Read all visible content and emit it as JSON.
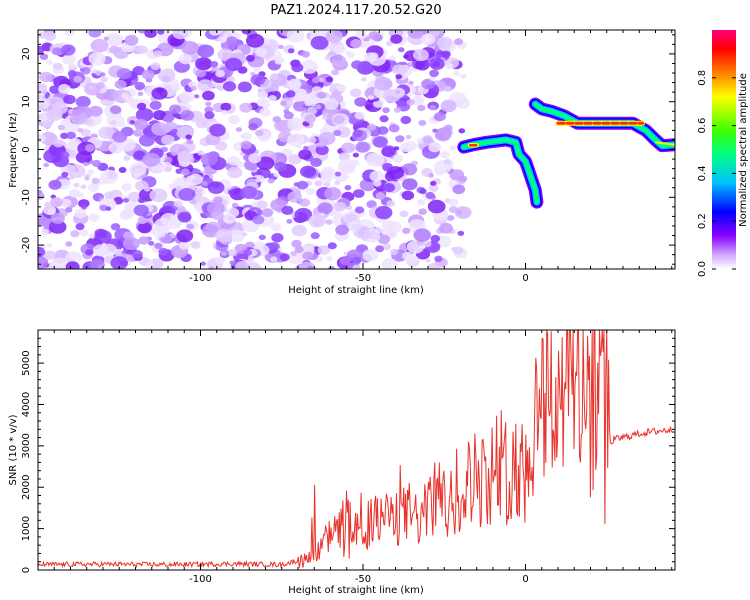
{
  "title": "PAZ1.2024.117.20.52.G20",
  "chart_data": [
    {
      "type": "heatmap",
      "title": "PAZ1.2024.117.20.52.G20",
      "xlabel": "Height of straight line (km)",
      "ylabel": "Frequency (Hz)",
      "xlim": [
        -150,
        46
      ],
      "ylim": [
        -25,
        25
      ],
      "x_ticks": [
        -100,
        -50,
        0
      ],
      "y_ticks": [
        -20,
        -10,
        0,
        10,
        20
      ],
      "noise_region_x": [
        -150,
        -19
      ],
      "ridge": [
        {
          "x": -19,
          "y": 0.5
        },
        {
          "x": -16,
          "y": 1.0
        },
        {
          "x": -12,
          "y": 1.5
        },
        {
          "x": -6,
          "y": 2.0
        },
        {
          "x": -3,
          "y": 1.5
        },
        {
          "x": -2,
          "y": -1.0
        },
        {
          "x": 0,
          "y": -2.5
        },
        {
          "x": 1,
          "y": -4.5
        },
        {
          "x": 2,
          "y": -6.5
        },
        {
          "x": 3,
          "y": -8.5
        },
        {
          "x": 3.5,
          "y": -11.0
        },
        {
          "x": 3,
          "y": 9.5
        },
        {
          "x": 5,
          "y": 8.5
        },
        {
          "x": 8,
          "y": 8.0
        },
        {
          "x": 12,
          "y": 7.0
        },
        {
          "x": 16,
          "y": 5.5
        },
        {
          "x": 22,
          "y": 5.5
        },
        {
          "x": 28,
          "y": 5.5
        },
        {
          "x": 33,
          "y": 5.5
        },
        {
          "x": 37,
          "y": 4.0
        },
        {
          "x": 40,
          "y": 2.0
        },
        {
          "x": 42,
          "y": 0.8
        },
        {
          "x": 46,
          "y": 1.0
        }
      ],
      "colorbar": {
        "label": "Normalized spectral amplitude",
        "range": [
          0,
          1
        ],
        "ticks": [
          0.0,
          0.2,
          0.4,
          0.6,
          0.8
        ],
        "colors": [
          "#ffffff",
          "#cfa7ff",
          "#8800ff",
          "#0000ff",
          "#00c0ff",
          "#00ff80",
          "#40ff00",
          "#ffff00",
          "#ff8000",
          "#ff0000",
          "#ff0080"
        ]
      }
    },
    {
      "type": "line",
      "xlabel": "Height of straight line (km)",
      "ylabel": "SNR (10 * v/v)",
      "xlim": [
        -150,
        46
      ],
      "ylim": [
        0,
        5800
      ],
      "x_ticks": [
        -100,
        -50,
        0
      ],
      "y_ticks": [
        0,
        1000,
        2000,
        3000,
        4000,
        5000
      ],
      "color": "#e8322c",
      "series": [
        {
          "x": [
            -150,
            -130,
            -110,
            -90,
            -75,
            -66,
            -62,
            -58,
            -55,
            -52,
            -48,
            -44,
            -40,
            -36,
            -32,
            -28,
            -24,
            -20,
            -16,
            -12,
            -8,
            -6,
            -4,
            -2,
            0,
            2,
            4,
            6,
            8,
            10,
            14,
            18,
            22,
            25,
            26,
            27,
            30,
            35,
            40,
            46
          ],
          "y": [
            130,
            140,
            130,
            150,
            130,
            300,
            700,
            900,
            1300,
            1000,
            1100,
            1300,
            1200,
            1400,
            1200,
            1800,
            1500,
            2000,
            2200,
            2300,
            2600,
            2400,
            2800,
            2500,
            2300,
            3500,
            4000,
            4300,
            4100,
            4500,
            4700,
            4800,
            5000,
            5000,
            3000,
            3150,
            3200,
            3300,
            3350,
            3400
          ]
        }
      ]
    }
  ]
}
